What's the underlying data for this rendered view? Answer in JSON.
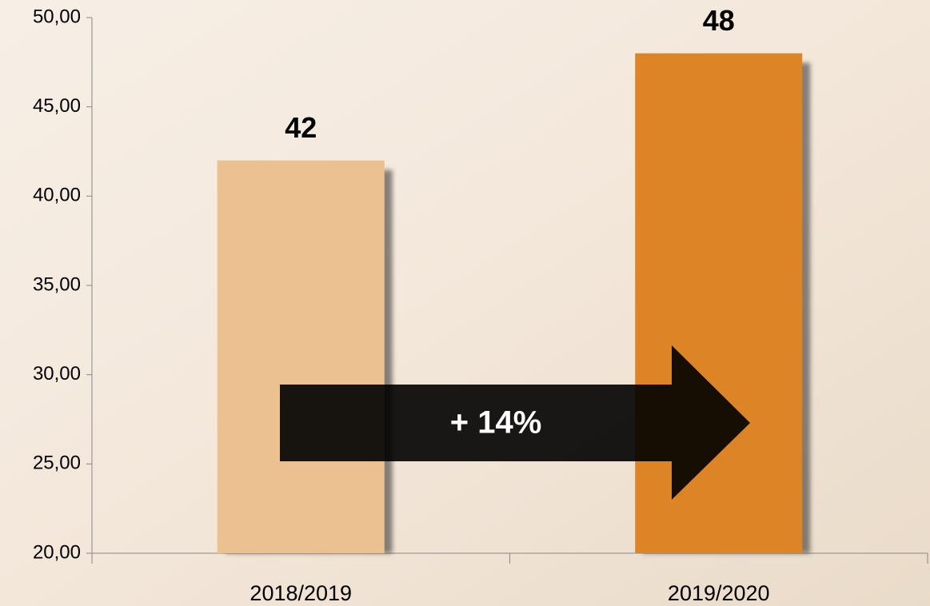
{
  "chart_data": {
    "type": "bar",
    "categories": [
      "2018/2019",
      "2019/2020"
    ],
    "values": [
      42,
      48
    ],
    "colors": [
      "#ecc192",
      "#dc8426"
    ],
    "ylim": [
      20,
      50
    ],
    "yticks": [
      {
        "value": 20,
        "label": "20,00"
      },
      {
        "value": 25,
        "label": "25,00"
      },
      {
        "value": 30,
        "label": "30,00"
      },
      {
        "value": 35,
        "label": "35,00"
      },
      {
        "value": 40,
        "label": "40,00"
      },
      {
        "value": 45,
        "label": "45,00"
      },
      {
        "value": 50,
        "label": "50,00"
      }
    ],
    "annotation": "+ 14%"
  }
}
